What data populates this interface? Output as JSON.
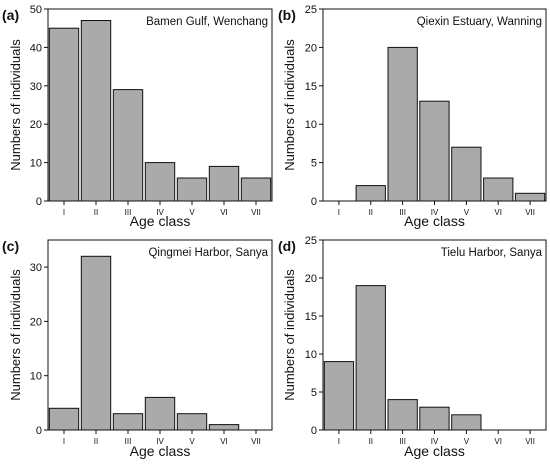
{
  "chart_data": [
    {
      "type": "bar",
      "panel_label": "(a)",
      "title": "Bamen Gulf, Wenchang",
      "categories": [
        "I",
        "II",
        "III",
        "IV",
        "V",
        "VI",
        "VII"
      ],
      "values": [
        45,
        47,
        29,
        10,
        6,
        9,
        6
      ],
      "ylim": [
        0,
        50
      ],
      "yticks": [
        0,
        10,
        20,
        30,
        40,
        50
      ],
      "xlabel": "Age class",
      "ylabel": "Numbers of individuals",
      "bar_color": "#aaaaaa",
      "grid": false
    },
    {
      "type": "bar",
      "panel_label": "(b)",
      "title": "Qiexin Estuary, Wanning",
      "categories": [
        "I",
        "II",
        "III",
        "IV",
        "V",
        "VI",
        "VII"
      ],
      "values": [
        0,
        2,
        20,
        13,
        7,
        3,
        1
      ],
      "ylim": [
        0,
        25
      ],
      "yticks": [
        0,
        5,
        10,
        15,
        20,
        25
      ],
      "xlabel": "Age class",
      "ylabel": "Numbers of individuals",
      "bar_color": "#aaaaaa",
      "grid": false
    },
    {
      "type": "bar",
      "panel_label": "(c)",
      "title": "Qingmei Harbor, Sanya",
      "categories": [
        "I",
        "II",
        "III",
        "IV",
        "V",
        "VI",
        "VII"
      ],
      "values": [
        4,
        32,
        3,
        6,
        3,
        1,
        0
      ],
      "ylim": [
        0,
        35
      ],
      "yticks": [
        0,
        10,
        20,
        30
      ],
      "xlabel": "Age class",
      "ylabel": "Numbers of individuals",
      "bar_color": "#aaaaaa",
      "grid": false
    },
    {
      "type": "bar",
      "panel_label": "(d)",
      "title": "Tielu Harbor, Sanya",
      "categories": [
        "I",
        "II",
        "III",
        "IV",
        "V",
        "VI",
        "VII"
      ],
      "values": [
        9,
        19,
        4,
        3,
        2,
        0,
        0
      ],
      "ylim": [
        0,
        25
      ],
      "yticks": [
        0,
        5,
        10,
        15,
        20,
        25
      ],
      "xlabel": "Age class",
      "ylabel": "Numbers of individuals",
      "bar_color": "#aaaaaa",
      "grid": false
    }
  ]
}
